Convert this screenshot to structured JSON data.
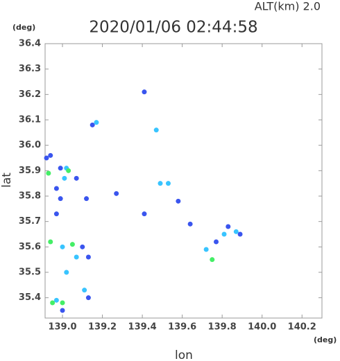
{
  "chart_data": {
    "type": "scatter",
    "title": "2020/01/06 02:44:58",
    "altitude_label": "ALT(km) 2.0",
    "y_unit": "(deg)",
    "x_unit": "(deg)",
    "x_label": "lon",
    "y_label": "lat",
    "xlim": [
      138.913,
      140.3
    ],
    "ylim": [
      35.32,
      36.4
    ],
    "xticks": [
      {
        "value": 139.0,
        "label": "139.0"
      },
      139.2,
      139.4,
      139.6,
      139.8,
      {
        "value": 140.0,
        "label": "140.0"
      },
      140.2
    ],
    "yticks": [
      35.4,
      35.5,
      35.6,
      35.7,
      35.8,
      35.9,
      {
        "value": 36.0,
        "label": "36.0"
      },
      36.1,
      36.2,
      36.3,
      36.4
    ],
    "series": [
      {
        "color": "#3a55ee",
        "x": [
          139.41,
          139.15,
          138.92,
          138.94,
          138.99,
          139.07,
          138.97,
          138.99,
          138.97,
          139.58,
          139.12,
          139.27,
          139.1,
          139.13,
          139.0,
          139.13,
          139.83,
          139.89,
          139.77,
          139.64,
          139.41
        ],
        "y": [
          36.21,
          36.08,
          35.95,
          35.96,
          35.91,
          35.87,
          35.83,
          35.79,
          35.73,
          35.78,
          35.79,
          35.81,
          35.6,
          35.56,
          35.35,
          35.4,
          35.68,
          35.65,
          35.62,
          35.69,
          35.73
        ]
      },
      {
        "color": "#38c4ff",
        "x": [
          139.47,
          139.17,
          139.02,
          139.01,
          139.49,
          139.53,
          139.0,
          139.07,
          139.02,
          139.11,
          138.97,
          139.81,
          139.87,
          139.72
        ],
        "y": [
          36.06,
          36.09,
          35.91,
          35.87,
          35.85,
          35.85,
          35.6,
          35.56,
          35.5,
          35.43,
          35.39,
          35.65,
          35.66,
          35.59
        ]
      },
      {
        "color": "#44ee66",
        "x": [
          139.03,
          138.93,
          138.94,
          139.05,
          139.0,
          138.95,
          139.75
        ],
        "y": [
          35.9,
          35.89,
          35.62,
          35.61,
          35.38,
          35.38,
          35.55
        ]
      }
    ]
  }
}
